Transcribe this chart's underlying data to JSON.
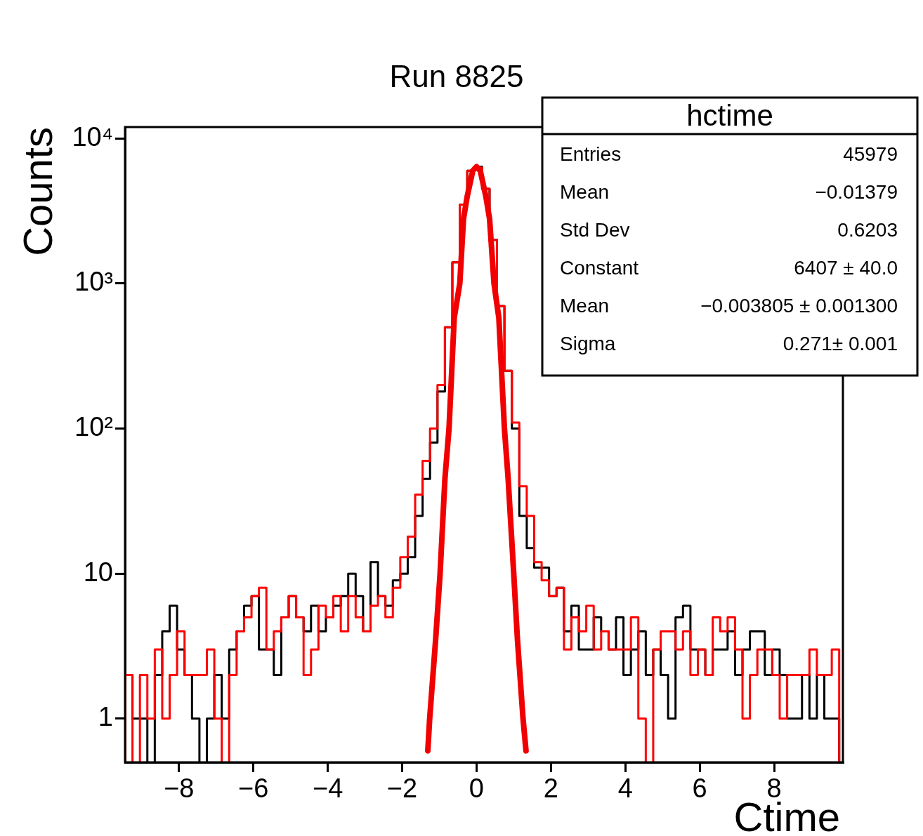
{
  "chart_data": {
    "type": "histogram",
    "title": "Run 8825",
    "xlabel": "Ctime",
    "ylabel": "Counts",
    "log": "y",
    "grid": false,
    "legend": false,
    "marker": "none",
    "xlim": [
      -9.45,
      9.85
    ],
    "ylim": [
      0.5,
      12000
    ],
    "xticks": [
      {
        "value": -8,
        "label": "−8"
      },
      {
        "value": -6,
        "label": "−6"
      },
      {
        "value": -4,
        "label": "−4"
      },
      {
        "value": -2,
        "label": "−2"
      },
      0,
      2,
      4,
      6,
      8
    ],
    "yticks": [
      1,
      10,
      {
        "value": 100,
        "label": "10²"
      },
      {
        "value": 1000,
        "label": "10³"
      },
      {
        "value": 10000,
        "label": "10⁴"
      }
    ],
    "bins": [
      -9.45,
      -9.25,
      -9.05,
      -8.85,
      -8.65,
      -8.45,
      -8.25,
      -8.05,
      -7.85,
      -7.65,
      -7.45,
      -7.25,
      -7.05,
      -6.85,
      -6.65,
      -6.45,
      -6.25,
      -6.05,
      -5.85,
      -5.65,
      -5.45,
      -5.25,
      -5.05,
      -4.85,
      -4.65,
      -4.45,
      -4.25,
      -4.05,
      -3.85,
      -3.65,
      -3.45,
      -3.25,
      -3.05,
      -2.85,
      -2.65,
      -2.45,
      -2.25,
      -2.05,
      -1.85,
      -1.65,
      -1.45,
      -1.25,
      -1.05,
      -0.85,
      -0.65,
      -0.45,
      -0.25,
      -0.05,
      0.15,
      0.35,
      0.55,
      0.75,
      0.95,
      1.15,
      1.35,
      1.55,
      1.75,
      1.95,
      2.15,
      2.35,
      2.55,
      2.75,
      2.95,
      3.15,
      3.35,
      3.55,
      3.75,
      3.95,
      4.15,
      4.35,
      4.55,
      4.75,
      4.95,
      5.15,
      5.35,
      5.55,
      5.75,
      5.95,
      6.15,
      6.35,
      6.55,
      6.75,
      6.95,
      7.15,
      7.35,
      7.55,
      7.75,
      7.95,
      8.15,
      8.35,
      8.55,
      8.75,
      8.95,
      9.15,
      9.35,
      9.55,
      9.75
    ],
    "series": [
      {
        "color": "#000000",
        "values": [
          2,
          1,
          1,
          null,
          2,
          4,
          6,
          3,
          2,
          1,
          null,
          1,
          2,
          1,
          3,
          4,
          6,
          7,
          3,
          3,
          2,
          5,
          7,
          5,
          4,
          6,
          4,
          5,
          6,
          7,
          10,
          7,
          4,
          12,
          7,
          6,
          9,
          10,
          13,
          25,
          45,
          80,
          180,
          500,
          1400,
          3500,
          6000,
          6400,
          4500,
          2000,
          700,
          250,
          100,
          25,
          15,
          11,
          11,
          7,
          8,
          4,
          6,
          3,
          3,
          5,
          4,
          3,
          5,
          2,
          3,
          4,
          2,
          3,
          2,
          1,
          5,
          6,
          3,
          3,
          2,
          3,
          3,
          4,
          2,
          3,
          4,
          4,
          2,
          3,
          2,
          1,
          1,
          2,
          1,
          2,
          1,
          1
        ]
      },
      {
        "color": "#ff0000",
        "values": [
          2,
          null,
          2,
          1,
          3,
          1,
          2,
          4,
          2,
          2,
          2,
          3,
          1,
          null,
          2,
          4,
          5,
          7,
          8,
          3,
          4,
          5,
          7,
          5,
          2,
          3,
          6,
          5,
          7,
          4,
          7,
          5,
          4,
          6,
          7,
          5,
          8,
          13,
          18,
          35,
          60,
          100,
          200,
          500,
          1400,
          3500,
          6000,
          6300,
          4500,
          2000,
          700,
          250,
          110,
          40,
          25,
          12,
          9,
          7,
          8,
          3,
          5,
          4,
          6,
          3,
          4,
          3,
          3,
          3,
          5,
          1,
          null,
          3,
          4,
          4,
          3,
          4,
          2,
          3,
          2,
          5,
          4,
          5,
          3,
          1,
          2,
          3,
          3,
          2,
          1,
          2,
          2,
          2,
          3,
          2,
          2,
          3
        ]
      },
      {
        "type": "line",
        "color": "#f00000",
        "x": [
          -1.31,
          -1.26,
          -1.1,
          -0.98,
          -0.85,
          -0.74,
          -0.6,
          -0.45,
          -0.35,
          -0.25,
          -0.1,
          0,
          0.1,
          0.25,
          0.35,
          0.47,
          0.6,
          0.75,
          0.85,
          1.0,
          1.1,
          1.25,
          1.33
        ],
        "values": [
          0.6,
          1,
          3.5,
          10,
          45,
          100,
          580,
          1000,
          2800,
          4000,
          6000,
          6400,
          6000,
          4000,
          2800,
          1000,
          580,
          100,
          45,
          10,
          3.5,
          1,
          0.6
        ]
      }
    ],
    "annotations": [
      "hctime",
      "Entries",
      "45979",
      "Mean",
      "−0.01379",
      "Std Dev",
      "0.6203",
      "Constant",
      "6407 ± 40.0",
      "Mean",
      "−0.003805 ± 0.001300",
      "Sigma",
      "0.271± 0.001"
    ]
  }
}
